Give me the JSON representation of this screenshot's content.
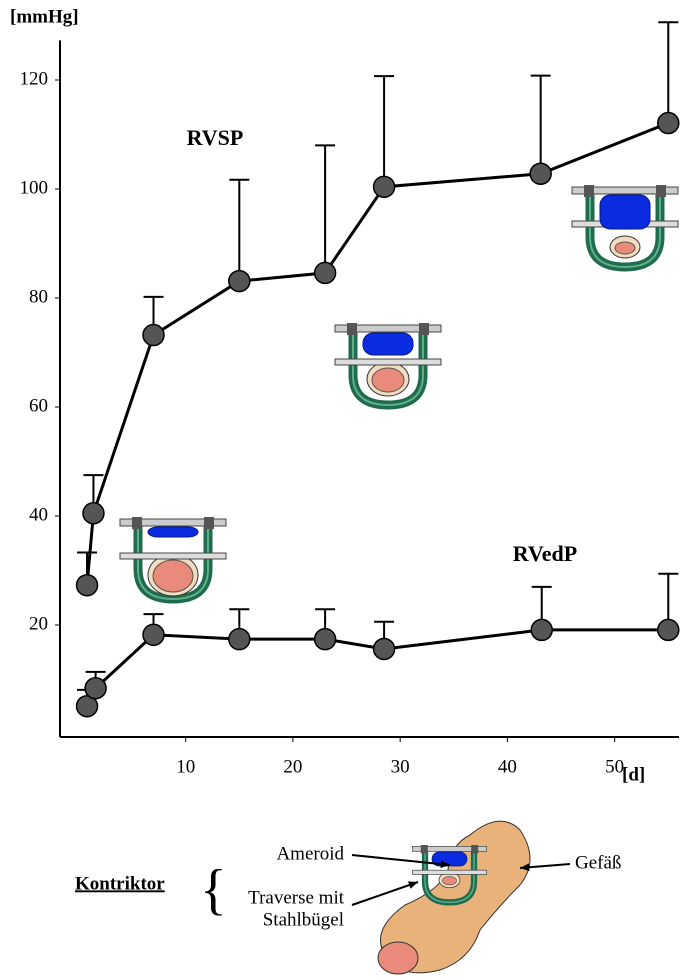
{
  "chart_data": {
    "type": "line",
    "y_axis_label": "[mmHg]",
    "x_axis_label": "[d]",
    "xlim": [
      -2,
      56
    ],
    "ylim": [
      0,
      128
    ],
    "xticks": [
      10,
      20,
      30,
      40,
      50
    ],
    "yticks": [
      20,
      40,
      60,
      80,
      100,
      120
    ],
    "series": [
      {
        "name": "RVSP",
        "color": "#555555",
        "x": [
          0.8,
          1.4,
          7.0,
          15.0,
          23.0,
          28.5,
          43.1,
          55.0
        ],
        "values": [
          27.3,
          40.5,
          73.2,
          83.1,
          84.6,
          100.4,
          102.8,
          112.1
        ],
        "errors": [
          6,
          7,
          7,
          18.6,
          23.4,
          20.3,
          18,
          18.5
        ]
      },
      {
        "name": "RVedP",
        "color": "#555555",
        "x": [
          0.8,
          1.6,
          7.0,
          15.0,
          23.0,
          28.5,
          43.2,
          55.0
        ],
        "values": [
          5.1,
          8.4,
          18.2,
          17.4,
          17.4,
          15.6,
          19.1,
          19.1
        ],
        "errors": [
          3,
          3,
          3.8,
          5.5,
          5.5,
          5,
          7.9,
          10.3
        ]
      }
    ]
  },
  "legend": {
    "title": "Kontriktor",
    "ameroid": "Ameroid",
    "traverse": [
      "Traverse mit",
      "Stahlbügel"
    ],
    "vessel": "Gefäß"
  }
}
